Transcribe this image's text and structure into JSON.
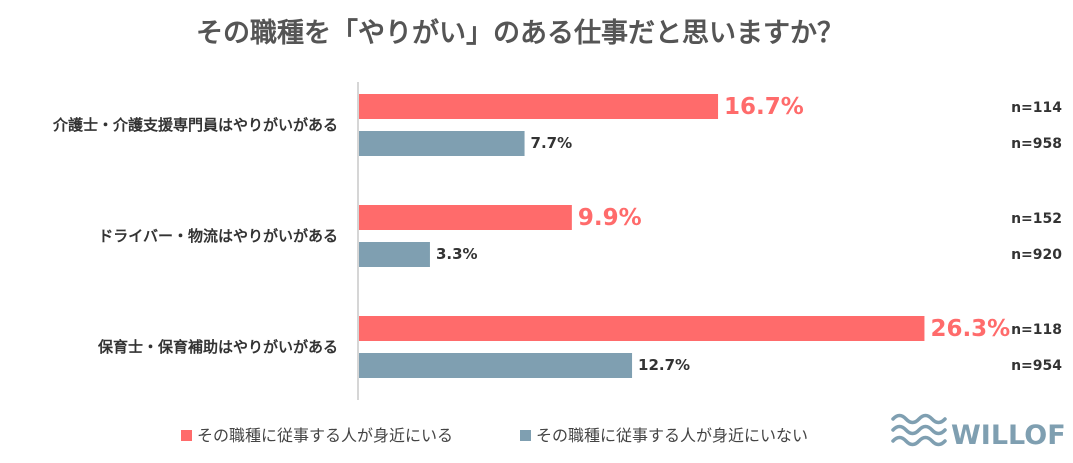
{
  "colors": {
    "series_a": "#FF6B6B",
    "series_b": "#7F9FB1",
    "axis": "#C8C8C8",
    "title": "#555555",
    "logo": "#7F9FB1"
  },
  "logo": {
    "text": "WILLOF",
    "icon": "waves-icon"
  },
  "chart_data": {
    "type": "bar",
    "orientation": "horizontal",
    "title": "その職種を「やりがい」のある仕事だと思いますか？",
    "categories": [
      "介護士・介護支援専門員はやりがいがある",
      "ドライバー・物流はやりがいがある",
      "保育士・保育補助はやりがいがある"
    ],
    "series": [
      {
        "name": "その職種に従事する人が身近にいる",
        "values": [
          16.7,
          9.9,
          26.3
        ],
        "labels": [
          "16.7%",
          "9.9%",
          "26.3%"
        ],
        "n": [
          "n=114",
          "n=152",
          "n=118"
        ]
      },
      {
        "name": "その職種に従事する人が身近にいない",
        "values": [
          7.7,
          3.3,
          12.7
        ],
        "labels": [
          "7.7%",
          "3.3%",
          "12.7%"
        ],
        "n": [
          "n=958",
          "n=920",
          "n=954"
        ]
      }
    ],
    "xlim": [
      0,
      30
    ],
    "grid": false,
    "legend": "bottom"
  }
}
